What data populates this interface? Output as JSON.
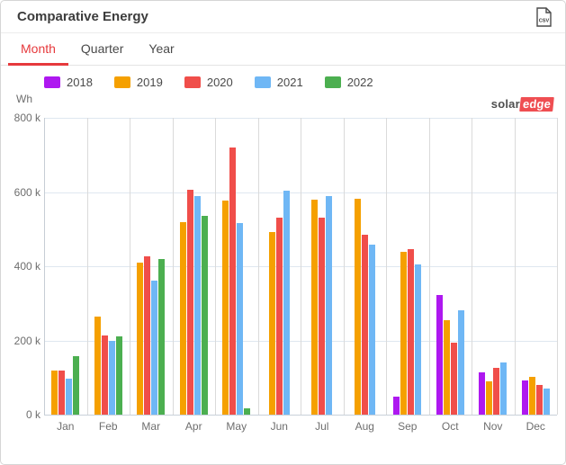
{
  "widget": {
    "title": "Comparative Energy",
    "export": {
      "csv_label": "CSV"
    }
  },
  "tabs": {
    "items": [
      {
        "label": "Month",
        "active": true
      },
      {
        "label": "Quarter",
        "active": false
      },
      {
        "label": "Year",
        "active": false
      }
    ]
  },
  "logo": {
    "part1": "solar",
    "part2": "edge"
  },
  "colors": {
    "accent_tab": "#e6393c",
    "logo_red": "#ef4e52",
    "grid_horizontal": "#dfe7f0",
    "grid_vertical": "#dadada"
  },
  "chart_data": {
    "type": "bar",
    "title": "Comparative Energy",
    "unit_label": "Wh",
    "value_unit": "kWh-displayed-as-k (values below are in thousands of Wh)",
    "ylim": [
      0,
      800
    ],
    "ytick_labels": [
      "800 k",
      "600 k",
      "400 k",
      "200 k",
      "0 k"
    ],
    "grid": true,
    "legend_position": "top",
    "categories": [
      "Jan",
      "Feb",
      "Mar",
      "Apr",
      "May",
      "Jun",
      "Jul",
      "Aug",
      "Sep",
      "Oct",
      "Nov",
      "Dec"
    ],
    "series": [
      {
        "name": "2018",
        "color": "#ae18f0",
        "values": [
          null,
          null,
          null,
          null,
          null,
          null,
          null,
          null,
          48,
          323,
          115,
          93
        ]
      },
      {
        "name": "2019",
        "color": "#f5a000",
        "values": [
          120,
          265,
          410,
          518,
          578,
          493,
          579,
          582,
          439,
          255,
          89,
          101
        ]
      },
      {
        "name": "2020",
        "color": "#f04e4a",
        "values": [
          118,
          214,
          427,
          607,
          719,
          532,
          531,
          485,
          447,
          194,
          125,
          81
        ]
      },
      {
        "name": "2021",
        "color": "#6fb7f5",
        "values": [
          98,
          198,
          362,
          590,
          516,
          604,
          590,
          459,
          404,
          281,
          141,
          71
        ]
      },
      {
        "name": "2022",
        "color": "#4caf50",
        "values": [
          157,
          212,
          419,
          537,
          18,
          null,
          null,
          null,
          null,
          null,
          null,
          null
        ]
      }
    ]
  }
}
